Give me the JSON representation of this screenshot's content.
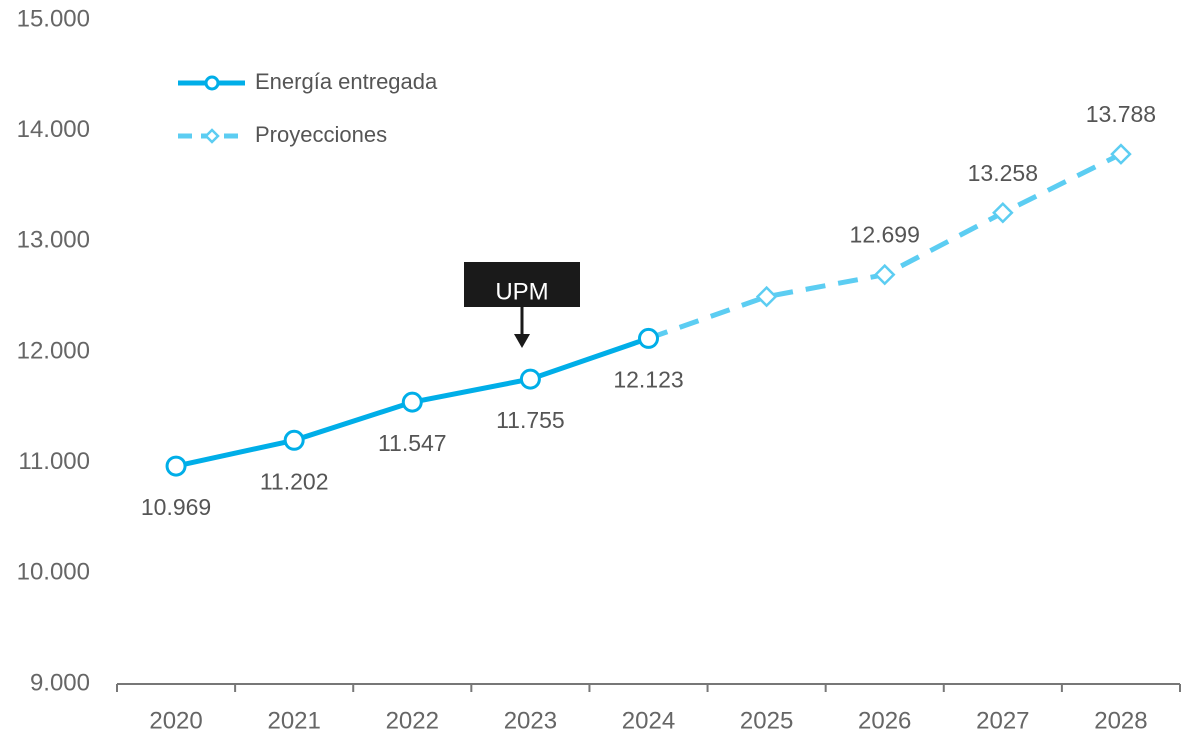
{
  "chart_data": {
    "type": "line",
    "categories": [
      "2020",
      "2021",
      "2022",
      "2023",
      "2024",
      "2025",
      "2026",
      "2027",
      "2028"
    ],
    "series": [
      {
        "name": "Energía entregada",
        "color": "#00aee8",
        "marker": "circle",
        "values": [
          10969,
          11202,
          11547,
          11755,
          12123,
          null,
          null,
          null,
          null
        ],
        "value_labels": [
          "10.969",
          "11.202",
          "11.547",
          "11.755",
          "12.123",
          null,
          null,
          null,
          null
        ]
      },
      {
        "name": "Proyecciones",
        "color": "#5ccdf2",
        "marker": "diamond",
        "dashed": true,
        "values": [
          null,
          null,
          null,
          null,
          12123,
          12500,
          12699,
          13258,
          13788
        ],
        "value_labels": [
          null,
          null,
          null,
          null,
          null,
          null,
          "12.699",
          "13.258",
          "13.788"
        ]
      }
    ],
    "ylim": [
      9000,
      15000
    ],
    "yticks": [
      {
        "value": 9000,
        "label": "9.000"
      },
      {
        "value": 10000,
        "label": "10.000"
      },
      {
        "value": 11000,
        "label": "11.000"
      },
      {
        "value": 12000,
        "label": "12.000"
      },
      {
        "value": 13000,
        "label": "13.000"
      },
      {
        "value": 14000,
        "label": "14.000"
      },
      {
        "value": 15000,
        "label": "15.000"
      }
    ],
    "annotation": {
      "text": "UPM",
      "category": "2023"
    },
    "legend": "top-left",
    "grid": false
  }
}
